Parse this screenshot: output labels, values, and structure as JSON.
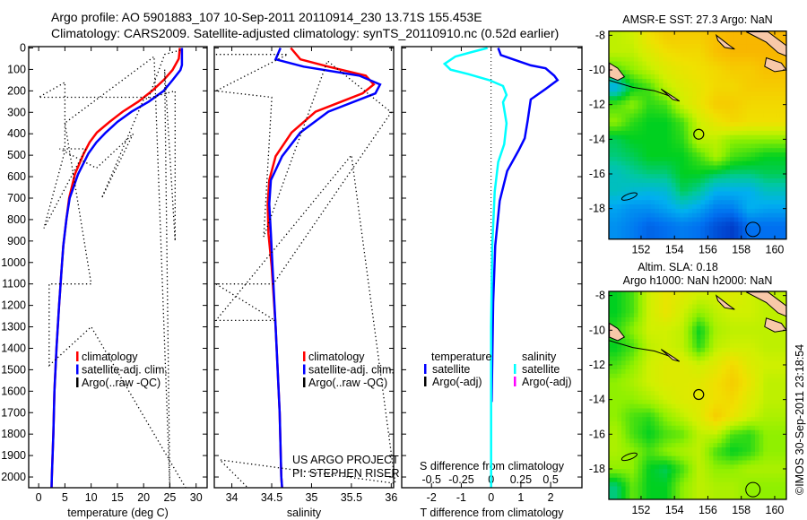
{
  "title": {
    "line1": "Argo profile: AO 5901883_107 10-Sep-2011 20110914_230 13.71S 155.453E",
    "line2": "Climatology: CARS2009. Satellite-adjusted climatology: synTS_20110910.nc (0.52d earlier)"
  },
  "credit": "©IMOS 30-Sep-2011 23:18:54",
  "project": {
    "line1": "US ARGO PROJECT",
    "line2": "PI: STEPHEN RISER"
  },
  "colors": {
    "climatology": "#ff0000",
    "satellite": "#0000ff",
    "argo": "#000000",
    "salinity_sat": "#00ffff",
    "salinity_argo": "#ff00ff"
  },
  "chart_data": [
    {
      "type": "line",
      "id": "temperature",
      "xlabel": "temperature (deg C)",
      "ylabel": "",
      "xlim": [
        -1.9,
        32.1
      ],
      "ylim": [
        0,
        2050
      ],
      "xticks": [
        0,
        5,
        10,
        15,
        20,
        25,
        30
      ],
      "yticks": [
        0,
        100,
        200,
        300,
        400,
        500,
        600,
        700,
        800,
        900,
        1000,
        1100,
        1200,
        1300,
        1400,
        1500,
        1600,
        1700,
        1800,
        1900,
        2000
      ],
      "legend": [
        "climatology",
        "satellite-adj. clim.",
        "Argo(..raw -QC)"
      ],
      "legend_position": "lower-center",
      "series": [
        {
          "name": "climatology",
          "color": "#ff0000",
          "points": [
            [
              26.9,
              0
            ],
            [
              26.7,
              50
            ],
            [
              25.5,
              103
            ],
            [
              23.8,
              150
            ],
            [
              21.6,
              200
            ],
            [
              19,
              250
            ],
            [
              16,
              297
            ],
            [
              13.5,
              345
            ],
            [
              11.1,
              394
            ],
            [
              9.7,
              440
            ],
            [
              8.6,
              491
            ],
            [
              6.9,
              589
            ],
            [
              5.8,
              700
            ],
            [
              5.3,
              797
            ],
            [
              4.7,
              922
            ],
            [
              4.4,
              1019
            ],
            [
              3.9,
              1200
            ],
            [
              3.4,
              1400
            ],
            [
              3.0,
              1600
            ],
            [
              2.8,
              1800
            ],
            [
              2.5,
              2000
            ],
            [
              2.45,
              2050
            ]
          ]
        },
        {
          "name": "satellite-adj. clim.",
          "color": "#0000ff",
          "points": [
            [
              27.3,
              0
            ],
            [
              27.3,
              80
            ],
            [
              27,
              103
            ],
            [
              25.5,
              150
            ],
            [
              23.8,
              200
            ],
            [
              21,
              250
            ],
            [
              17.7,
              297
            ],
            [
              15,
              345
            ],
            [
              12.8,
              394
            ],
            [
              11,
              440
            ],
            [
              9.5,
              491
            ],
            [
              7.5,
              589
            ],
            [
              5.9,
              700
            ],
            [
              5.3,
              797
            ],
            [
              4.7,
              922
            ],
            [
              4.4,
              1019
            ],
            [
              3.9,
              1200
            ],
            [
              3.4,
              1400
            ],
            [
              3.0,
              1600
            ],
            [
              2.8,
              1800
            ],
            [
              2.5,
              2000
            ],
            [
              2.45,
              2050
            ]
          ]
        },
        {
          "name": "Argo(..raw -QC)",
          "color": "#000000",
          "dotted": true,
          "points": [
            [
              27,
              10
            ],
            [
              24,
              30
            ],
            [
              21,
              230
            ],
            [
              0,
              230
            ],
            [
              5,
              160
            ],
            [
              5,
              480
            ],
            [
              1,
              840
            ],
            [
              9,
              470
            ],
            [
              4,
              470
            ],
            [
              11,
              560
            ],
            [
              18,
              400
            ],
            [
              12,
              700
            ],
            [
              20,
              240
            ],
            [
              26,
              200
            ],
            [
              26,
              900
            ],
            [
              24,
              100
            ],
            [
              25,
              2050
            ],
            [
              22,
              40
            ],
            [
              5,
              350
            ],
            [
              10,
              1100
            ],
            [
              2,
              1100
            ],
            [
              2,
              1480
            ],
            [
              10,
              1300
            ],
            [
              28,
              2050
            ]
          ]
        }
      ]
    },
    {
      "type": "line",
      "id": "salinity",
      "xlabel": "salinity",
      "xlim": [
        33.78,
        36.03
      ],
      "ylim": [
        0,
        2050
      ],
      "xticks": [
        34,
        34.5,
        35,
        35.5,
        36
      ],
      "legend": [
        "climatology",
        "satellite-adj. clim.",
        "Argo(..raw -QC)"
      ],
      "legend_position": "lower-center",
      "series": [
        {
          "name": "climatology",
          "color": "#ff0000",
          "points": [
            [
              34.74,
              0
            ],
            [
              34.86,
              53
            ],
            [
              35.21,
              87
            ],
            [
              35.68,
              129
            ],
            [
              35.78,
              170
            ],
            [
              35.64,
              212
            ],
            [
              35.05,
              297
            ],
            [
              34.75,
              394
            ],
            [
              34.55,
              505
            ],
            [
              34.47,
              616
            ],
            [
              34.45,
              727
            ],
            [
              34.46,
              866
            ],
            [
              34.5,
              1019
            ],
            [
              34.55,
              1300
            ],
            [
              34.6,
              1700
            ],
            [
              34.62,
              2000
            ],
            [
              34.63,
              2050
            ]
          ]
        },
        {
          "name": "satellite-adj. clim.",
          "color": "#0000ff",
          "points": [
            [
              34.61,
              0
            ],
            [
              34.55,
              53
            ],
            [
              34.9,
              87
            ],
            [
              35.6,
              129
            ],
            [
              35.86,
              170
            ],
            [
              35.8,
              212
            ],
            [
              35.21,
              297
            ],
            [
              34.86,
              394
            ],
            [
              34.63,
              505
            ],
            [
              34.49,
              616
            ],
            [
              34.47,
              727
            ],
            [
              34.49,
              866
            ],
            [
              34.51,
              1019
            ],
            [
              34.55,
              1300
            ],
            [
              34.6,
              1700
            ],
            [
              34.62,
              2000
            ],
            [
              34.63,
              2050
            ]
          ]
        },
        {
          "name": "Argo(..raw -QC)",
          "color": "#000000",
          "dotted": true,
          "points": [
            [
              33.8,
              30
            ],
            [
              34.7,
              30
            ],
            [
              33.8,
              200
            ],
            [
              34.5,
              230
            ],
            [
              34.5,
              240
            ],
            [
              34.4,
              880
            ],
            [
              35.2,
              60
            ],
            [
              36,
              300
            ],
            [
              34.52,
              1100
            ],
            [
              33.8,
              1100
            ],
            [
              34.54,
              1270
            ],
            [
              33.8,
              1270
            ],
            [
              35.5,
              500
            ],
            [
              36.05,
              2030
            ],
            [
              33.85,
              1920
            ],
            [
              34.2,
              2050
            ]
          ]
        }
      ]
    },
    {
      "type": "line",
      "id": "difference",
      "xlabel": "T difference from climatology",
      "xlabel_top": "S difference from climatology",
      "xlim": [
        -3,
        3.05
      ],
      "xticks": [
        -2,
        -1,
        0,
        1,
        2
      ],
      "s_xticks": [
        "-0.5",
        "-0.25",
        "0",
        "0.25",
        "0.5"
      ],
      "s_xtick_values": [
        -0.5,
        -0.25,
        0,
        0.25,
        0.5
      ],
      "ylim": [
        0,
        2050
      ],
      "legend": {
        "temperature": "temperature",
        "salinity": "salinity",
        "t_sat": "satellite",
        "t_argo": "Argo(-adj)",
        "s_sat": "satellite",
        "s_argo": "Argo(-adj)"
      },
      "series": [
        {
          "name": "T satellite",
          "color": "#0000ff",
          "units": "degC",
          "points": [
            [
              0.24,
              0
            ],
            [
              0.33,
              33
            ],
            [
              0.74,
              53
            ],
            [
              1.33,
              81
            ],
            [
              1.83,
              95
            ],
            [
              2.12,
              129
            ],
            [
              2.23,
              150
            ],
            [
              1.83,
              191
            ],
            [
              1.33,
              240
            ],
            [
              1.23,
              338
            ],
            [
              1.13,
              421
            ],
            [
              0.93,
              476
            ],
            [
              0.54,
              574
            ],
            [
              0.29,
              713
            ],
            [
              0.14,
              922
            ],
            [
              0.07,
              1186
            ],
            [
              0.02,
              1650
            ]
          ]
        },
        {
          "name": "S satellite",
          "color": "#00ffff",
          "units": "psu",
          "points": [
            [
              -0.03,
              0
            ],
            [
              -0.16,
              19
            ],
            [
              -0.3,
              40
            ],
            [
              -0.39,
              74
            ],
            [
              -0.34,
              101
            ],
            [
              -0.19,
              122
            ],
            [
              -0.015,
              150
            ],
            [
              0.1,
              177
            ],
            [
              0.13,
              219
            ],
            [
              0.1,
              253
            ],
            [
              0.13,
              351
            ],
            [
              0.11,
              449
            ],
            [
              0.06,
              532
            ],
            [
              0.03,
              671
            ],
            [
              0.01,
              922
            ],
            [
              0,
              1300
            ],
            [
              0,
              2050
            ]
          ]
        }
      ]
    },
    {
      "type": "heatmap",
      "id": "sst_map",
      "title": "AMSR-E SST: 27.3 Argo: NaN",
      "xlim": [
        150.07,
        160.7
      ],
      "ylim": [
        -19.76,
        -7.76
      ],
      "xticks": [
        152,
        154,
        156,
        158,
        160
      ],
      "yticks": [
        -8,
        -10,
        -12,
        -14,
        -16,
        -18
      ],
      "marker": [
        155.453,
        -13.71
      ],
      "grid_lats": [
        -8,
        -9,
        -10,
        -11,
        -12,
        -13,
        -14,
        -15,
        -16,
        -17,
        -18,
        -19
      ],
      "grid_lons": [
        150.5,
        151.5,
        152.5,
        153.5,
        154.5,
        155.5,
        156.5,
        157.5,
        158.5,
        159.5
      ],
      "values_normalized": [
        [
          0.6,
          0.62,
          0.7,
          0.75,
          0.75,
          0.75,
          0.78,
          0.8,
          0.8,
          0.8
        ],
        [
          0.6,
          0.6,
          0.65,
          0.7,
          0.72,
          0.72,
          0.78,
          0.8,
          0.8,
          0.8
        ],
        [
          0.5,
          0.55,
          0.6,
          0.65,
          0.68,
          0.7,
          0.72,
          0.75,
          0.75,
          0.78
        ],
        [
          0.3,
          0.45,
          0.5,
          0.6,
          0.65,
          0.68,
          0.72,
          0.72,
          0.75,
          0.75
        ],
        [
          0.5,
          0.55,
          0.48,
          0.5,
          0.62,
          0.68,
          0.75,
          0.75,
          0.72,
          0.72
        ],
        [
          0.55,
          0.48,
          0.45,
          0.45,
          0.5,
          0.62,
          0.68,
          0.72,
          0.7,
          0.7
        ],
        [
          0.42,
          0.45,
          0.45,
          0.45,
          0.48,
          0.6,
          0.6,
          0.55,
          0.55,
          0.55
        ],
        [
          0.4,
          0.42,
          0.45,
          0.45,
          0.45,
          0.5,
          0.58,
          0.5,
          0.48,
          0.45
        ],
        [
          0.35,
          0.38,
          0.4,
          0.4,
          0.45,
          0.45,
          0.42,
          0.4,
          0.4,
          0.42
        ],
        [
          0.35,
          0.33,
          0.32,
          0.33,
          0.42,
          0.38,
          0.3,
          0.3,
          0.3,
          0.35
        ],
        [
          0.28,
          0.25,
          0.25,
          0.28,
          0.32,
          0.28,
          0.22,
          0.22,
          0.3,
          0.28
        ],
        [
          0.25,
          0.22,
          0.18,
          0.2,
          0.22,
          0.2,
          0.15,
          0.12,
          0.2,
          0.2
        ]
      ]
    },
    {
      "type": "heatmap",
      "id": "sla_map",
      "title": "Altim. SLA: 0.18",
      "subtitle": "Argo h1000: NaN h2000: NaN",
      "xlim": [
        150.07,
        160.7
      ],
      "ylim": [
        -19.76,
        -7.76
      ],
      "xticks": [
        152,
        154,
        156,
        158,
        160
      ],
      "yticks": [
        -8,
        -10,
        -12,
        -14,
        -16,
        -18
      ],
      "marker": [
        155.453,
        -13.71
      ],
      "grid_lats": [
        -8,
        -9,
        -10,
        -11,
        -12,
        -13,
        -14,
        -15,
        -16,
        -17,
        -18,
        -19
      ],
      "grid_lons": [
        150.5,
        151.5,
        152.5,
        153.5,
        154.5,
        155.5,
        156.5,
        157.5,
        158.5,
        159.5
      ],
      "values_normalized": [
        [
          0.45,
          0.5,
          0.62,
          0.68,
          0.65,
          0.62,
          0.62,
          0.65,
          0.62,
          0.6
        ],
        [
          0.45,
          0.5,
          0.62,
          0.68,
          0.62,
          0.55,
          0.6,
          0.62,
          0.62,
          0.6
        ],
        [
          0.48,
          0.55,
          0.62,
          0.62,
          0.6,
          0.45,
          0.58,
          0.6,
          0.6,
          0.6
        ],
        [
          0.45,
          0.5,
          0.6,
          0.62,
          0.6,
          0.48,
          0.6,
          0.62,
          0.62,
          0.6
        ],
        [
          0.5,
          0.55,
          0.62,
          0.65,
          0.65,
          0.62,
          0.66,
          0.72,
          0.65,
          0.62
        ],
        [
          0.55,
          0.58,
          0.62,
          0.65,
          0.65,
          0.66,
          0.7,
          0.75,
          0.68,
          0.6
        ],
        [
          0.55,
          0.55,
          0.58,
          0.62,
          0.65,
          0.66,
          0.7,
          0.72,
          0.65,
          0.6
        ],
        [
          0.55,
          0.5,
          0.48,
          0.55,
          0.6,
          0.65,
          0.75,
          0.68,
          0.62,
          0.58
        ],
        [
          0.58,
          0.5,
          0.45,
          0.5,
          0.52,
          0.6,
          0.6,
          0.5,
          0.48,
          0.55
        ],
        [
          0.58,
          0.55,
          0.5,
          0.55,
          0.58,
          0.6,
          0.5,
          0.45,
          0.48,
          0.55
        ],
        [
          0.55,
          0.55,
          0.45,
          0.42,
          0.5,
          0.6,
          0.55,
          0.55,
          0.58,
          0.58
        ],
        [
          0.4,
          0.52,
          0.45,
          0.45,
          0.55,
          0.6,
          0.58,
          0.58,
          0.55,
          0.55
        ]
      ]
    }
  ]
}
